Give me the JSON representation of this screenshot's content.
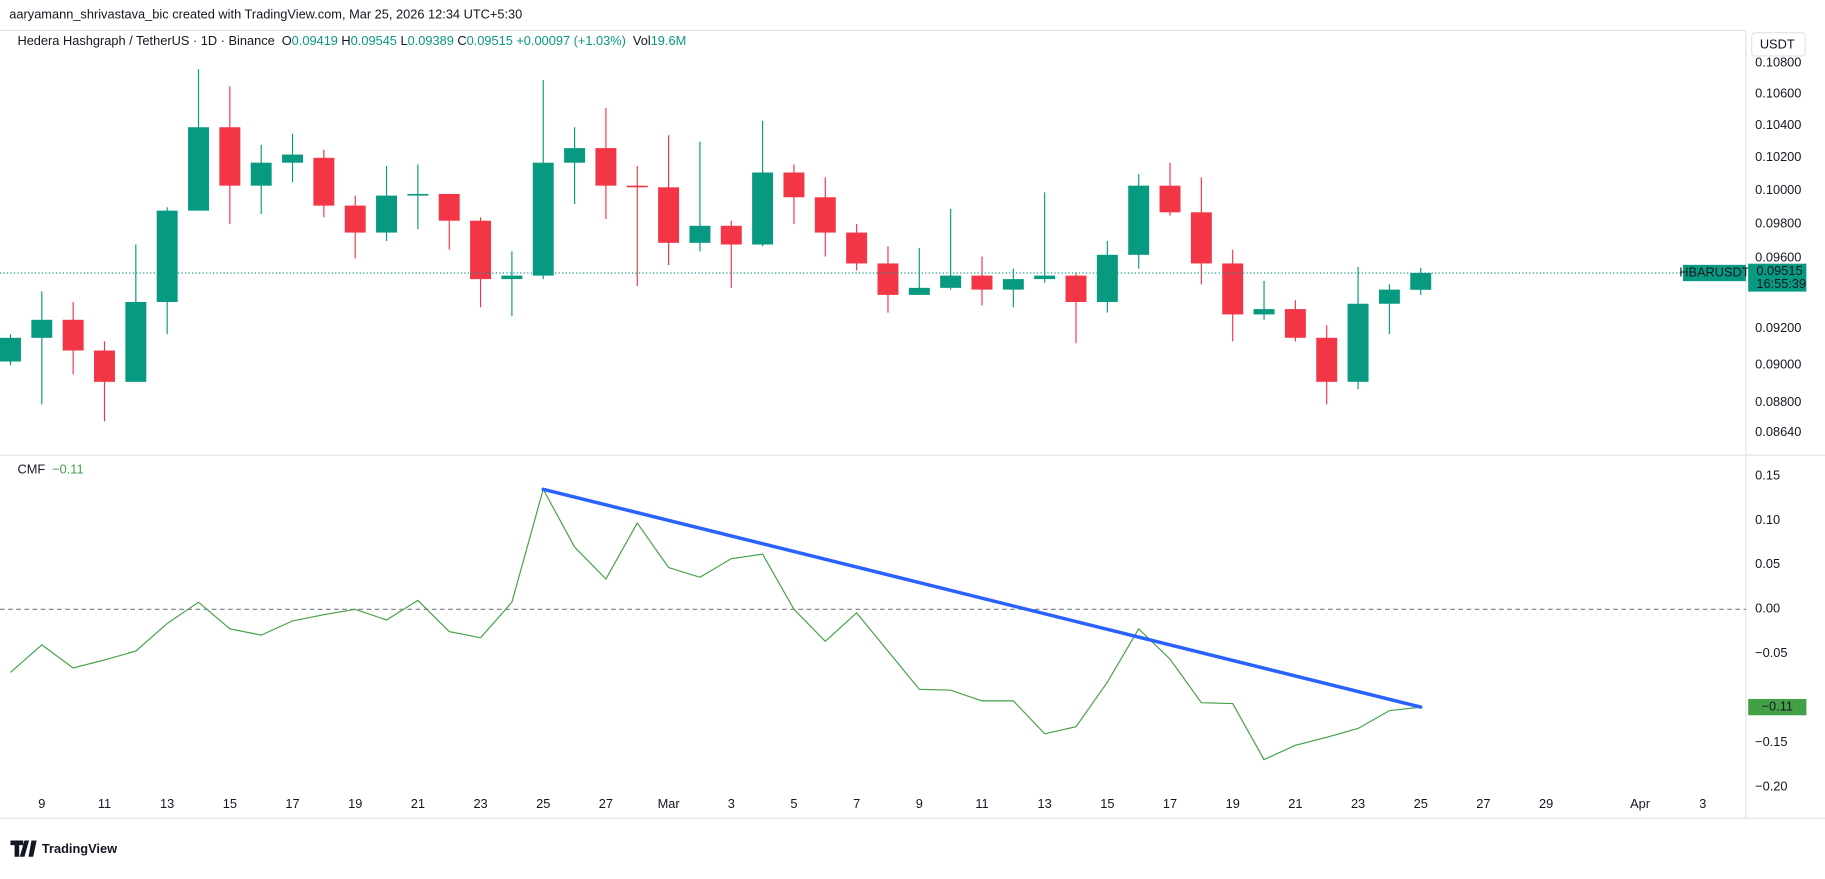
{
  "header": {
    "attribution": "aaryamann_shrivastava_bic created with TradingView.com, Mar 25, 2026 12:34 UTC+5:30",
    "logo": "TradingView"
  },
  "chart_data": [
    {
      "type": "candlestick",
      "title": "Hedera Hashgraph / TetherUS · 1D · Binance",
      "legend_keys": [
        "O",
        "H",
        "L",
        "C"
      ],
      "change_label": "+0.00097 (+1.03%)",
      "volume_key": "Vol",
      "volume_label": "19.6M",
      "currency": "USDT",
      "symbol_tag": "HBARUSDT",
      "countdown": "16:55:39",
      "log_scale": true,
      "grid": false,
      "up_color": "#089981",
      "down_color": "#f23645",
      "ylim": [
        0.0853,
        0.11
      ],
      "yticks": [
        {
          "value": 0.108,
          "label": "0.10800"
        },
        {
          "value": 0.106,
          "label": "0.10600"
        },
        {
          "value": 0.104,
          "label": "0.10400"
        },
        {
          "value": 0.102,
          "label": "0.10200"
        },
        {
          "value": 0.1,
          "label": "0.10000"
        },
        {
          "value": 0.098,
          "label": "0.09800"
        },
        {
          "value": 0.096,
          "label": "0.09600"
        },
        {
          "value": 0.092,
          "label": "0.09200"
        },
        {
          "value": 0.09,
          "label": "0.09000"
        },
        {
          "value": 0.088,
          "label": "0.08800"
        },
        {
          "value": 0.0864,
          "label": "0.08640"
        }
      ],
      "open": [
        0.0902,
        0.0915,
        0.0925,
        0.0908,
        0.0891,
        0.0935,
        0.0988,
        0.1039,
        0.1003,
        0.1017,
        0.102,
        0.0991,
        0.0975,
        0.0997,
        0.0998,
        0.0982,
        0.0948,
        0.095,
        0.1017,
        0.1026,
        0.1003,
        0.1002,
        0.0969,
        0.0979,
        0.0968,
        0.1011,
        0.0996,
        0.0975,
        0.0957,
        0.0939,
        0.0943,
        0.095,
        0.0942,
        0.0948,
        0.095,
        0.0935,
        0.0962,
        0.1003,
        0.0987,
        0.0957,
        0.0928,
        0.0931,
        0.0915,
        0.0891,
        0.0934,
        0.09419,
        null,
        null,
        null,
        null,
        null,
        null,
        null,
        null,
        null
      ],
      "high": [
        0.0917,
        0.0941,
        0.0935,
        0.0913,
        0.0968,
        0.099,
        0.1076,
        0.1065,
        0.1028,
        0.1035,
        0.1025,
        0.0997,
        0.1015,
        0.1016,
        0.0998,
        0.0984,
        0.0964,
        0.1069,
        0.1039,
        0.1051,
        0.1015,
        0.1034,
        0.103,
        0.0982,
        0.1043,
        0.1016,
        0.1008,
        0.098,
        0.0967,
        0.0966,
        0.0989,
        0.0961,
        0.0954,
        0.0999,
        0.0952,
        0.097,
        0.101,
        0.1017,
        0.1008,
        0.0965,
        0.0947,
        0.0936,
        0.0922,
        0.0955,
        0.0945,
        0.09545,
        null,
        null,
        null,
        null,
        null,
        null,
        null,
        null,
        null
      ],
      "low": [
        0.09,
        0.0879,
        0.0895,
        0.087,
        0.0891,
        0.0917,
        0.0988,
        0.098,
        0.0986,
        0.1005,
        0.0984,
        0.096,
        0.097,
        0.0977,
        0.0965,
        0.0932,
        0.0927,
        0.0948,
        0.0992,
        0.0983,
        0.0944,
        0.0956,
        0.0964,
        0.0943,
        0.0967,
        0.098,
        0.0961,
        0.0953,
        0.0929,
        0.0939,
        0.0942,
        0.0933,
        0.0932,
        0.0946,
        0.0912,
        0.0929,
        0.0954,
        0.0985,
        0.0945,
        0.0913,
        0.0925,
        0.0913,
        0.0879,
        0.0887,
        0.0917,
        0.09389,
        null,
        null,
        null,
        null,
        null,
        null,
        null,
        null,
        null
      ],
      "close": [
        0.0915,
        0.0925,
        0.0908,
        0.0891,
        0.0935,
        0.0988,
        0.1039,
        0.1003,
        0.1017,
        0.1022,
        0.0991,
        0.0975,
        0.0997,
        0.0998,
        0.0982,
        0.0948,
        0.095,
        0.1017,
        0.1026,
        0.1003,
        0.1002,
        0.0969,
        0.0979,
        0.0968,
        0.1011,
        0.0996,
        0.0975,
        0.0957,
        0.0939,
        0.0943,
        0.095,
        0.0942,
        0.0948,
        0.095,
        0.0935,
        0.0962,
        0.1003,
        0.0987,
        0.0957,
        0.0928,
        0.0931,
        0.0915,
        0.0891,
        0.0934,
        0.0942,
        0.09515,
        null,
        null,
        null,
        null,
        null,
        null,
        null,
        null,
        null
      ]
    },
    {
      "type": "line",
      "title": "CMF",
      "grid": false,
      "baseline": 0,
      "categories": [
        null,
        "9",
        null,
        "11",
        null,
        "13",
        null,
        "15",
        null,
        "17",
        null,
        "19",
        null,
        "21",
        null,
        "23",
        null,
        "25",
        null,
        "27",
        null,
        "Mar",
        null,
        "3",
        null,
        "5",
        null,
        "7",
        null,
        "9",
        null,
        "11",
        null,
        "13",
        null,
        "15",
        null,
        "17",
        null,
        "19",
        null,
        "21",
        null,
        "23",
        null,
        "25",
        null,
        "27",
        null,
        "29",
        null,
        null,
        "Apr",
        null,
        "3"
      ],
      "ylim": [
        -0.205,
        0.172
      ],
      "yticks": [
        0.15,
        {
          "value": 0.1,
          "label": "0.10"
        },
        0.05,
        {
          "value": 0,
          "label": "0.00"
        },
        {
          "value": -0.05,
          "label": "−0.05"
        },
        {
          "value": -0.15,
          "label": "−0.15"
        },
        {
          "value": -0.2,
          "label": "−0.20"
        }
      ],
      "series": [
        {
          "name": "CMF",
          "color": "#43a047",
          "last_label": "−0.11",
          "values": [
            -0.071,
            -0.04,
            -0.066,
            -0.057,
            -0.047,
            -0.016,
            0.008,
            -0.022,
            -0.029,
            -0.013,
            -0.006,
            0.0,
            -0.012,
            0.01,
            -0.025,
            -0.032,
            0.008,
            0.135,
            0.07,
            0.034,
            0.097,
            0.047,
            0.036,
            0.057,
            0.062,
            0.0,
            -0.036,
            -0.004,
            -0.047,
            -0.09,
            -0.091,
            -0.103,
            -0.103,
            -0.14,
            -0.132,
            -0.082,
            -0.022,
            -0.056,
            -0.105,
            -0.106,
            -0.169,
            -0.153,
            -0.144,
            -0.134,
            -0.114,
            -0.11,
            null,
            null,
            null,
            null,
            null,
            null,
            null,
            null,
            null
          ]
        }
      ],
      "trendline": {
        "color": "#2962ff",
        "x": [
          17,
          45
        ],
        "values": [
          0.135,
          -0.11
        ]
      }
    }
  ]
}
